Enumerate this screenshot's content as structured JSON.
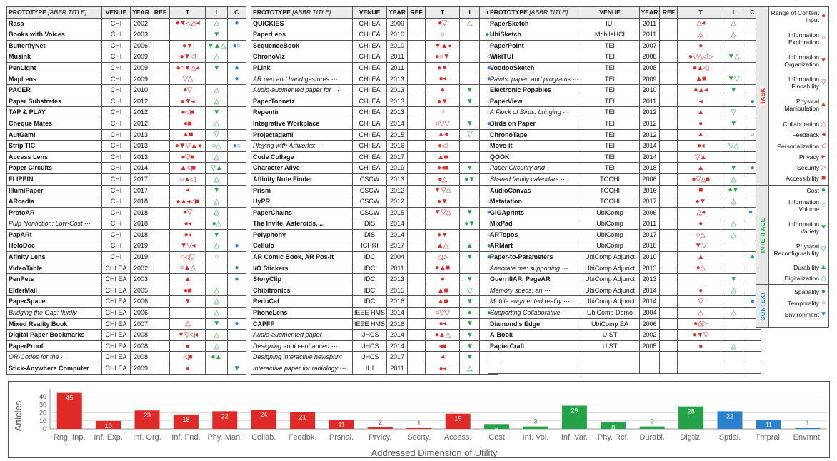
{
  "headers": {
    "prototype": "PROTOTYPE",
    "abbr": "[ABBR TITLE]",
    "venue": "VENUE",
    "year": "YEAR",
    "ref": "REF",
    "t": "T",
    "i": "I",
    "c": "C"
  },
  "tables": [
    [
      {
        "name": "Rasa",
        "venue": "CHI",
        "year": "2002",
        "t": "●▼◁△◂",
        "i": "△",
        "c": "●"
      },
      {
        "name": "Books with Voices",
        "venue": "CHI",
        "year": "2003",
        "t": "",
        "i": "▼",
        "c": ""
      },
      {
        "name": "ButterflyNet",
        "venue": "CHI",
        "year": "2006",
        "t": "●▼",
        "i": "▼▲△",
        "c": "●○"
      },
      {
        "name": "Musink",
        "venue": "CHI",
        "year": "2009",
        "t": "●▼◁",
        "i": "△",
        "c": ""
      },
      {
        "name": "PenLight",
        "venue": "CHI",
        "year": "2009",
        "t": "●○▼△◂",
        "i": "▼",
        "c": "●"
      },
      {
        "name": "MapLens",
        "venue": "CHI",
        "year": "2009",
        "t": "▽△",
        "i": "",
        "c": "●"
      },
      {
        "name": "PACER",
        "venue": "CHI",
        "year": "2010",
        "t": "●▽",
        "i": "△",
        "c": ""
      },
      {
        "name": "Paper Substrates",
        "venue": "CHI",
        "year": "2012",
        "t": "●▼◂",
        "i": "△",
        "c": ""
      },
      {
        "name": "TAP & PLAY",
        "venue": "CHI",
        "year": "2012",
        "t": "●◁■",
        "i": "▼",
        "c": ""
      },
      {
        "name": "Cheque Mates",
        "venue": "CHI",
        "year": "2012",
        "t": "●■",
        "i": "△",
        "c": ""
      },
      {
        "name": "AutGami",
        "venue": "CHI",
        "year": "2013",
        "t": "▲■",
        "i": "▽",
        "c": ""
      },
      {
        "name": "Strip'TIC",
        "venue": "CHI",
        "year": "2013",
        "t": "●▼▽▲◂",
        "i": "○△",
        "c": "●○"
      },
      {
        "name": "Access Lens",
        "venue": "CHI",
        "year": "2013",
        "t": "●▽■",
        "i": "△",
        "c": ""
      },
      {
        "name": "Paper Circuits",
        "venue": "CHI",
        "year": "2014",
        "t": "▲◁■",
        "i": "▽▲",
        "c": ""
      },
      {
        "name": "FLIPPIN'",
        "venue": "CHI",
        "year": "2017",
        "t": "○▲◁",
        "i": "△",
        "c": ""
      },
      {
        "name": "IllumiPaper",
        "venue": "CHI",
        "year": "2017",
        "t": "◂",
        "i": "▼",
        "c": ""
      },
      {
        "name": "ARcadia",
        "venue": "CHI",
        "year": "2018",
        "t": "●▲◂◁■",
        "i": "△",
        "c": ""
      },
      {
        "name": "ProtoAR",
        "venue": "CHI",
        "year": "2018",
        "t": "●▽",
        "i": "△",
        "c": ""
      },
      {
        "name": "Pulp Nonfiction: Low-Cost ···",
        "it": true,
        "venue": "CHI",
        "year": "2018",
        "t": "●◂",
        "i": "●△",
        "c": ""
      },
      {
        "name": "PapARt",
        "venue": "CHI",
        "year": "2018",
        "t": "●◂",
        "i": "▼",
        "c": ""
      },
      {
        "name": "HoloDoc",
        "venue": "CHI",
        "year": "2019",
        "t": "▼▽◂",
        "i": "△",
        "c": "●"
      },
      {
        "name": "Afinity Lens",
        "venue": "CHI",
        "year": "2019",
        "t": "○◁▽",
        "i": "○",
        "c": ""
      },
      {
        "name": "VideoTable",
        "venue": "CHI EA",
        "year": "2002",
        "t": "○▲△",
        "i": "",
        "c": "●"
      },
      {
        "name": "PenPets",
        "venue": "CHI EA",
        "year": "2003",
        "t": "▲",
        "i": "",
        "c": "●"
      },
      {
        "name": "ElderMail",
        "venue": "CHI EA",
        "year": "2005",
        "t": "●■",
        "i": "△",
        "c": ""
      },
      {
        "name": "PaperSpace",
        "venue": "CHI EA",
        "year": "2006",
        "t": "▼",
        "i": "△",
        "c": ""
      },
      {
        "name": "Bridging the Gap: fluidly ···",
        "it": true,
        "venue": "CHI EA",
        "year": "2006",
        "t": "",
        "i": "△",
        "c": ""
      },
      {
        "name": "Mixed Reality Book",
        "venue": "CHI EA",
        "year": "2007",
        "t": "△",
        "i": "▼",
        "c": "●"
      },
      {
        "name": "Digital Paper Bookmarks",
        "venue": "CHI EA",
        "year": "2008",
        "t": "▼▽◁◂",
        "i": "△",
        "c": ""
      },
      {
        "name": "PaperProof",
        "venue": "CHI EA",
        "year": "2008",
        "t": "●",
        "i": "△",
        "c": ""
      },
      {
        "name": "QR-Codes for the ···",
        "it": true,
        "venue": "CHI EA",
        "year": "2008",
        "t": "◁■",
        "i": "●▲",
        "c": ""
      },
      {
        "name": "Stick-Anywhere Computer",
        "venue": "CHI EA",
        "year": "2009",
        "t": "●",
        "i": "",
        "c": "▼"
      }
    ],
    [
      {
        "name": "QUICKIES",
        "venue": "CHI EA",
        "year": "2009",
        "t": "●▽",
        "i": "△",
        "c": ""
      },
      {
        "name": "PaperLens",
        "venue": "CHI EA",
        "year": "2010",
        "t": "○",
        "i": "",
        "c": "●○"
      },
      {
        "name": "SequenceBook",
        "venue": "CHI EA",
        "year": "2010",
        "t": "▼▲◂",
        "i": "",
        "c": ""
      },
      {
        "name": "ChronoViz",
        "venue": "CHI EA",
        "year": "2011",
        "t": "●○▼",
        "i": "",
        "c": "○"
      },
      {
        "name": "PLink",
        "venue": "CHI EA",
        "year": "2011",
        "t": "●▼",
        "i": "",
        "c": "●"
      },
      {
        "name": "AR pen and hand gestures ···",
        "it": true,
        "venue": "CHI EA",
        "year": "2013",
        "t": "●◂",
        "i": "",
        "c": "●"
      },
      {
        "name": "Audio-augmented paper for ···",
        "it": true,
        "venue": "CHI EA",
        "year": "2013",
        "t": "●",
        "i": "▼",
        "c": ""
      },
      {
        "name": "PaperTonnetz",
        "venue": "CHI EA",
        "year": "2013",
        "t": "●▼",
        "i": "▼",
        "c": "○"
      },
      {
        "name": "Repentir",
        "venue": "CHI EA",
        "year": "2013",
        "t": "○",
        "i": "",
        "c": "○"
      },
      {
        "name": "Integrative Workplace",
        "venue": "CHI EA",
        "year": "2014",
        "t": "○▽▽",
        "i": "▼",
        "c": "●"
      },
      {
        "name": "Projectagami",
        "venue": "CHI EA",
        "year": "2015",
        "t": "▲◂",
        "i": "▽",
        "c": ""
      },
      {
        "name": "Playing with Artworks: ···",
        "it": true,
        "venue": "CHI EA",
        "year": "2016",
        "t": "●◁",
        "i": "",
        "c": ""
      },
      {
        "name": "Code Collage",
        "venue": "CHI EA",
        "year": "2017",
        "t": "▲■",
        "i": "",
        "c": ""
      },
      {
        "name": "Character Alive",
        "venue": "CHI EA",
        "year": "2019",
        "t": "●◂■",
        "i": "▼",
        "c": ""
      },
      {
        "name": "Affinity Note Finder",
        "venue": "CSCW",
        "year": "2013",
        "t": "●△",
        "i": "●▼",
        "c": ""
      },
      {
        "name": "Prism",
        "venue": "CSCW",
        "year": "2012",
        "t": "▼▽△",
        "i": "",
        "c": ""
      },
      {
        "name": "HyPR",
        "venue": "CSCW",
        "year": "2012",
        "t": "●▼",
        "i": "",
        "c": "○"
      },
      {
        "name": "PaperChains",
        "venue": "CSCW",
        "year": "2015",
        "t": "▼▽△",
        "i": "▼",
        "c": "●"
      },
      {
        "name": "The Invite, Asteroids, ...",
        "venue": "DIS",
        "year": "2014",
        "t": "",
        "i": "●▼",
        "c": ""
      },
      {
        "name": "Polyphony",
        "venue": "DIS",
        "year": "2014",
        "t": "●▼",
        "i": "",
        "c": "○"
      },
      {
        "name": "Cellulo",
        "venue": "ICHRI",
        "year": "2017",
        "t": "▲△",
        "i": "▲",
        "c": "●"
      },
      {
        "name": "AR Comic Book, AR Pos-It",
        "venue": "IDC",
        "year": "2004",
        "t": "△▷",
        "i": "▼",
        "c": "●"
      },
      {
        "name": "I/O Stickers",
        "venue": "IDC",
        "year": "2011",
        "t": "●▲■",
        "i": "",
        "c": ""
      },
      {
        "name": "StoryClip",
        "venue": "IDC",
        "year": "2013",
        "t": "●",
        "i": "▼",
        "c": ""
      },
      {
        "name": "Chibitronics",
        "venue": "IDC",
        "year": "2015",
        "t": "▲■",
        "i": "▽",
        "c": ""
      },
      {
        "name": "ReduCat",
        "venue": "IDC",
        "year": "2016",
        "t": "▲■",
        "i": "▼",
        "c": ""
      },
      {
        "name": "PhoneLens",
        "venue": "IEEE HMS",
        "year": "2014",
        "t": "○▽▽",
        "i": "●",
        "c": "●"
      },
      {
        "name": "CAPFF",
        "venue": "IEEE HMS",
        "year": "2016",
        "t": "●◂",
        "i": "▼",
        "c": ""
      },
      {
        "name": "Audio-augmented paper ···",
        "it": true,
        "venue": "IJHCS",
        "year": "2014",
        "t": "●▲△",
        "i": "▼",
        "c": ""
      },
      {
        "name": "Designing audio-enhanced ···",
        "it": true,
        "venue": "IJHCS",
        "year": "2014",
        "t": "◂■",
        "i": "▼",
        "c": ""
      },
      {
        "name": "Designing interactive newsprint",
        "it": true,
        "venue": "IJHCS",
        "year": "2017",
        "t": "◂",
        "i": "▼",
        "c": ""
      },
      {
        "name": "Interactive paper for radiology ···",
        "it": true,
        "venue": "IUI",
        "year": "2011",
        "t": "●◂",
        "i": "△",
        "c": ""
      }
    ],
    [
      {
        "name": "PaperSketch",
        "venue": "IUI",
        "year": "2011",
        "t": "△◂",
        "i": "△",
        "c": ""
      },
      {
        "name": "UbiSketch",
        "venue": "MobileHCI",
        "year": "2011",
        "t": "△",
        "i": "△",
        "c": ""
      },
      {
        "name": "PaperPoint",
        "venue": "TEI",
        "year": "2007",
        "t": "●",
        "i": "",
        "c": ""
      },
      {
        "name": "WikiTUI",
        "venue": "TEI",
        "year": "2008",
        "t": "●▽△◁▷",
        "i": "▼△",
        "c": ""
      },
      {
        "name": "VoodooSketch",
        "venue": "TEI",
        "year": "2008",
        "t": "●▲◁",
        "i": "",
        "c": ""
      },
      {
        "name": "Paints, paper, and programs ···",
        "it": true,
        "venue": "TEI",
        "year": "2009",
        "t": "▲■",
        "i": "▼▽",
        "c": ""
      },
      {
        "name": "Electronic Popables",
        "venue": "TEI",
        "year": "2010",
        "t": "●▲◂",
        "i": "▼",
        "c": ""
      },
      {
        "name": "PaperView",
        "venue": "TEI",
        "year": "2011",
        "t": "◂",
        "i": "",
        "c": "●"
      },
      {
        "name": "A Flock of Birds: bringing ···",
        "it": true,
        "venue": "TEI",
        "year": "2012",
        "t": "▲",
        "i": "▽",
        "c": ""
      },
      {
        "name": "Birds on Paper",
        "venue": "TEI",
        "year": "2012",
        "t": "●",
        "i": "▼",
        "c": ""
      },
      {
        "name": "ChronoTape",
        "venue": "TEI",
        "year": "2012",
        "t": "▲",
        "i": "",
        "c": "○"
      },
      {
        "name": "Move-it",
        "venue": "TEI",
        "year": "2014",
        "t": "●◂",
        "i": "▽△",
        "c": ""
      },
      {
        "name": "QOOK",
        "venue": "TEI",
        "year": "2014",
        "t": "▽▲",
        "i": "",
        "c": ""
      },
      {
        "name": "Paper Circuitry and ···",
        "it": true,
        "venue": "TEI",
        "year": "2018",
        "t": "▲",
        "i": "▼",
        "c": "●"
      },
      {
        "name": "Shared family calendars ···",
        "it": true,
        "venue": "TOCHI",
        "year": "2006",
        "t": "●▽△■",
        "i": "△",
        "c": ""
      },
      {
        "name": "AudioCanvas",
        "venue": "TOCHI",
        "year": "2016",
        "t": "■",
        "i": "●▼",
        "c": ""
      },
      {
        "name": "Metatation",
        "venue": "TOCHI",
        "year": "2017",
        "t": "●▼",
        "i": "△",
        "c": ""
      },
      {
        "name": "GIGAprints",
        "venue": "UbiComp",
        "year": "2006",
        "t": "△◂",
        "i": "",
        "c": "●○"
      },
      {
        "name": "MixPad",
        "venue": "UbiComp",
        "year": "2011",
        "t": "●",
        "i": "△",
        "c": ""
      },
      {
        "name": "ARTopos",
        "venue": "UbiComp",
        "year": "2017",
        "t": "○△",
        "i": "△",
        "c": ""
      },
      {
        "name": "ARMart",
        "venue": "UbiComp",
        "year": "2018",
        "t": "▼▽",
        "i": "",
        "c": ""
      },
      {
        "name": "Paper-to-Parameters",
        "venue": "UbiComp Adjunct",
        "year": "2010",
        "t": "▲",
        "i": "",
        "c": "●"
      },
      {
        "name": "Annotate me: supporting ···",
        "it": true,
        "venue": "UbiComp Adjunct",
        "year": "2013",
        "t": "●△",
        "i": "",
        "c": ""
      },
      {
        "name": "GuerrillAR, PageAR",
        "venue": "UbiComp Adjunct",
        "year": "2013",
        "t": "",
        "i": "▼",
        "c": ""
      },
      {
        "name": "Memory specs: an ···",
        "it": true,
        "venue": "UbiComp Adjunct",
        "year": "2014",
        "t": "●",
        "i": "△",
        "c": ""
      },
      {
        "name": "Mobile augmented reality ···",
        "it": true,
        "venue": "UbiComp Adjunct",
        "year": "2014",
        "t": "▽",
        "i": "",
        "c": "●"
      },
      {
        "name": "Supporting Collaborative ···",
        "it": true,
        "venue": "UbiComp Demo",
        "year": "2004",
        "t": "△",
        "i": "△",
        "c": ""
      },
      {
        "name": "Diamond's Edge",
        "venue": "UbiComp EA",
        "year": "2006",
        "t": "●△▷",
        "i": "",
        "c": ""
      },
      {
        "name": "A-Book",
        "venue": "UIST",
        "year": "2002",
        "t": "●▼▽",
        "i": "",
        "c": ""
      },
      {
        "name": "PapierCraft",
        "venue": "UIST",
        "year": "2005",
        "t": "●",
        "i": "△",
        "c": ""
      },
      {
        "name": "",
        "venue": "",
        "year": "",
        "t": "",
        "i": "",
        "c": ""
      },
      {
        "name": "",
        "venue": "",
        "year": "",
        "t": "",
        "i": "",
        "c": ""
      }
    ]
  ],
  "legend": {
    "sections": [
      {
        "label": "TASK",
        "color": "#e02a27"
      },
      {
        "label": "INTERFACE",
        "color": "#23a248"
      },
      {
        "label": "CONTEXT",
        "color": "#2a82cf"
      }
    ],
    "items": [
      {
        "label": "Range of Content Input",
        "glyph": "●",
        "color": "#e02a27"
      },
      {
        "label": "Information Exploration",
        "glyph": "○",
        "color": "#e02a27"
      },
      {
        "label": "Information Organization",
        "glyph": "▼",
        "color": "#e02a27"
      },
      {
        "label": "Information Findability",
        "glyph": "▽",
        "color": "#e02a27"
      },
      {
        "label": "Physical Manipulation",
        "glyph": "▲",
        "color": "#e02a27"
      },
      {
        "label": "Collaboration",
        "glyph": "△",
        "color": "#e02a27"
      },
      {
        "label": "Feedback",
        "glyph": "◂",
        "color": "#e02a27"
      },
      {
        "label": "Personalization",
        "glyph": "◁",
        "color": "#e02a27"
      },
      {
        "label": "Privacy",
        "glyph": "▸",
        "color": "#e02a27"
      },
      {
        "label": "Security",
        "glyph": "▷",
        "color": "#e02a27"
      },
      {
        "label": "Accessibility",
        "glyph": "■",
        "color": "#e02a27"
      },
      {
        "label": "Cost",
        "glyph": "●",
        "color": "#23a248"
      },
      {
        "label": "Information Volume",
        "glyph": "○",
        "color": "#23a248"
      },
      {
        "label": "Information Variety",
        "glyph": "▼",
        "color": "#23a248"
      },
      {
        "label": "Physical Reconfigurability",
        "glyph": "▽",
        "color": "#23a248"
      },
      {
        "label": "Durability",
        "glyph": "▲",
        "color": "#23a248"
      },
      {
        "label": "Digitalization",
        "glyph": "△",
        "color": "#23a248"
      },
      {
        "label": "Spatiality",
        "glyph": "●",
        "color": "#2a82cf"
      },
      {
        "label": "Temporality",
        "glyph": "○",
        "color": "#2a82cf"
      },
      {
        "label": "Environment",
        "glyph": "▼",
        "color": "#2a82cf"
      }
    ]
  },
  "chart_data": {
    "type": "bar",
    "title": "",
    "xlabel": "Addressed Dimension of Utility",
    "ylabel": "Articles",
    "ylim": [
      0,
      50
    ],
    "yticks": [
      0,
      10,
      20,
      30,
      40
    ],
    "grid": true,
    "categories": [
      "Rng. Inp.",
      "Inf. Exp.",
      "Inf. Org.",
      "Inf. Fnd.",
      "Phy. Man.",
      "Collab.",
      "Feedbk.",
      "Prsnal.",
      "Prvicy.",
      "Secrty.",
      "Access.",
      "Cost",
      "Inf. Vol.",
      "Inf. Var.",
      "Phy. Rcf.",
      "Durabl.",
      "Digtlz.",
      "Sptial.",
      "Tmpral.",
      "Envmnt."
    ],
    "values": [
      45,
      10,
      23,
      18,
      22,
      24,
      21,
      11,
      2,
      1,
      19,
      6,
      3,
      29,
      8,
      3,
      28,
      22,
      11,
      1
    ],
    "colors": [
      "#e02a27",
      "#e02a27",
      "#e02a27",
      "#e02a27",
      "#e02a27",
      "#e02a27",
      "#e02a27",
      "#e02a27",
      "#e02a27",
      "#e02a27",
      "#e02a27",
      "#23a248",
      "#23a248",
      "#23a248",
      "#23a248",
      "#23a248",
      "#23a248",
      "#2a82cf",
      "#2a82cf",
      "#2a82cf"
    ]
  }
}
